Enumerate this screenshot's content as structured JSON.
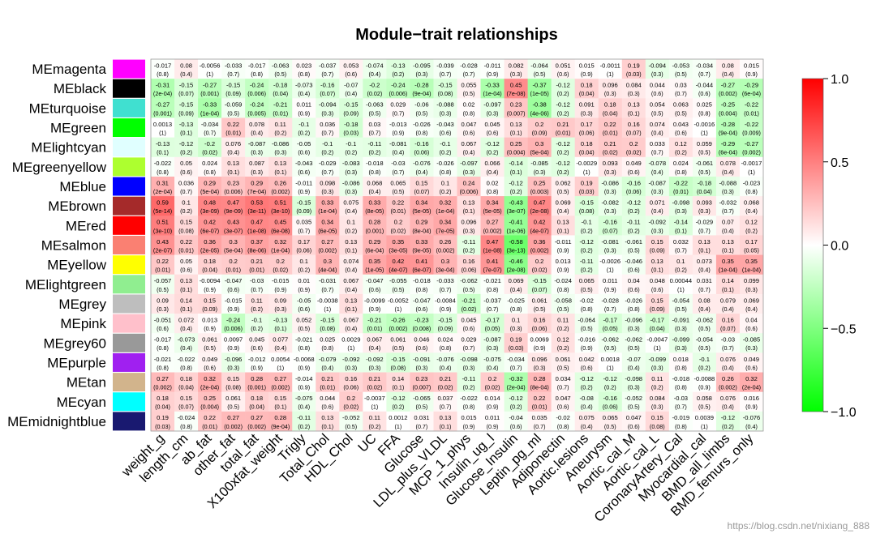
{
  "chart_data": {
    "type": "heatmap",
    "title": "Module−trait relationships",
    "rows": [
      "MEmagenta",
      "MEblack",
      "MEturquoise",
      "MEgreen",
      "MElightcyan",
      "MEgreenyellow",
      "MEblue",
      "MEbrown",
      "MEred",
      "MEsalmon",
      "MEyellow",
      "MElightgreen",
      "MEgrey",
      "MEpink",
      "MEgrey60",
      "MEpurple",
      "MEtan",
      "MEcyan",
      "MEmidnightblue"
    ],
    "row_colors": [
      "#ff00ff",
      "#000000",
      "#40e0d0",
      "#00ff00",
      "#e0ffff",
      "#adff2f",
      "#0000ff",
      "#a52a2a",
      "#ff0000",
      "#fa8072",
      "#ffff00",
      "#90ee90",
      "#bebebe",
      "#ffc0cb",
      "#999999",
      "#a020f0",
      "#d2b48c",
      "#00ffff",
      "#191970"
    ],
    "columns": [
      "weight_g",
      "length_cm",
      "ab_fat",
      "other_fat",
      "total_fat",
      "X100xfat_weight",
      "Trigly",
      "Total_Chol",
      "HDL_Chol",
      "UC",
      "FFA",
      "Glucose",
      "LDL_plus_VLDL",
      "MCP_1_phys",
      "Insulin_ug_l",
      "Glucose_Insulin",
      "Leptin_pg_ml",
      "Adiponectin",
      "Aortic.lesions",
      "Aneurysm",
      "Aortic_cal_M",
      "Aortic_cal_L",
      "CoronaryArtery_Cal",
      "Myocardial_cal",
      "BMD_all_limbs",
      "BMD_femurs_only"
    ],
    "values": [
      [
        "-0.017",
        "0.08",
        "-0.0056",
        "-0.033",
        "-0.017",
        "-0.063",
        "0.023",
        "-0.037",
        "0.053",
        "-0.074",
        "-0.13",
        "-0.095",
        "-0.039",
        "-0.028",
        "-0.011",
        "0.082",
        "-0.064",
        "0.051",
        "0.015",
        "-0.0011",
        "0.19",
        "-0.094",
        "-0.053",
        "-0.034",
        "0.08",
        "0.015"
      ],
      [
        "-0.31",
        "-0.15",
        "-0.27",
        "-0.15",
        "-0.24",
        "-0.18",
        "-0.073",
        "-0.16",
        "-0.07",
        "-0.2",
        "-0.24",
        "-0.28",
        "-0.15",
        "0.055",
        "-0.33",
        "0.45",
        "-0.37",
        "-0.12",
        "0.18",
        "0.096",
        "0.084",
        "0.044",
        "0.03",
        "-0.044",
        "-0.27",
        "-0.29"
      ],
      [
        "-0.27",
        "-0.15",
        "-0.33",
        "-0.059",
        "-0.24",
        "-0.21",
        "0.011",
        "-0.094",
        "-0.15",
        "-0.063",
        "0.029",
        "-0.06",
        "-0.088",
        "0.02",
        "-0.097",
        "0.23",
        "-0.38",
        "-0.12",
        "0.091",
        "0.18",
        "0.13",
        "0.054",
        "0.063",
        "0.025",
        "-0.25",
        "-0.22"
      ],
      [
        "0.0013",
        "-0.13",
        "-0.034",
        "0.22",
        "0.078",
        "0.11",
        "-0.1",
        "0.036",
        "-0.18",
        "0.03",
        "-0.013",
        "-0.026",
        "-0.043",
        "0.047",
        "0.045",
        "0.13",
        "0.2",
        "0.21",
        "0.17",
        "0.22",
        "0.16",
        "0.074",
        "0.043",
        "-0.0016",
        "-0.28",
        "-0.22"
      ],
      [
        "-0.13",
        "-0.12",
        "-0.2",
        "0.076",
        "-0.087",
        "-0.086",
        "-0.05",
        "-0.1",
        "-0.1",
        "-0.11",
        "-0.081",
        "-0.16",
        "-0.1",
        "0.067",
        "-0.12",
        "0.25",
        "0.3",
        "-0.12",
        "0.18",
        "0.21",
        "0.2",
        "0.033",
        "0.12",
        "0.059",
        "-0.29",
        "-0.27"
      ],
      [
        "-0.022",
        "0.05",
        "0.024",
        "0.13",
        "0.087",
        "0.13",
        "-0.043",
        "-0.029",
        "-0.083",
        "-0.018",
        "-0.03",
        "-0.076",
        "-0.026",
        "-0.097",
        "0.066",
        "-0.14",
        "-0.085",
        "-0.12",
        "-0.0029",
        "0.093",
        "0.049",
        "-0.078",
        "0.024",
        "-0.061",
        "0.078",
        "-0.0017"
      ],
      [
        "0.31",
        "0.036",
        "0.29",
        "0.23",
        "0.29",
        "0.26",
        "-0.011",
        "0.098",
        "-0.086",
        "0.068",
        "0.065",
        "0.15",
        "0.1",
        "0.24",
        "0.02",
        "-0.12",
        "0.25",
        "0.062",
        "0.19",
        "-0.086",
        "-0.16",
        "-0.087",
        "-0.22",
        "-0.18",
        "-0.088",
        "-0.023"
      ],
      [
        "0.59",
        "0.1",
        "0.48",
        "0.47",
        "0.53",
        "0.51",
        "-0.15",
        "0.33",
        "0.075",
        "0.33",
        "0.22",
        "0.34",
        "0.32",
        "0.13",
        "0.34",
        "-0.43",
        "0.47",
        "0.069",
        "-0.15",
        "-0.082",
        "-0.12",
        "0.071",
        "-0.098",
        "0.093",
        "-0.032",
        "0.068"
      ],
      [
        "0.51",
        "0.15",
        "0.42",
        "0.43",
        "0.47",
        "0.45",
        "0.035",
        "0.34",
        "0.1",
        "0.28",
        "0.2",
        "0.29",
        "0.34",
        "0.096",
        "0.27",
        "-0.41",
        "0.42",
        "0.13",
        "-0.1",
        "-0.16",
        "-0.11",
        "-0.092",
        "-0.14",
        "-0.029",
        "0.07",
        "0.12"
      ],
      [
        "0.43",
        "0.22",
        "0.36",
        "0.3",
        "0.37",
        "0.32",
        "0.17",
        "0.27",
        "0.13",
        "0.29",
        "0.35",
        "0.33",
        "0.26",
        "-0.11",
        "0.47",
        "-0.58",
        "0.36",
        "-0.011",
        "-0.12",
        "-0.081",
        "-0.061",
        "0.15",
        "0.032",
        "0.13",
        "0.13",
        "0.17"
      ],
      [
        "0.22",
        "0.05",
        "0.18",
        "0.2",
        "0.21",
        "0.2",
        "0.1",
        "0.3",
        "0.074",
        "0.35",
        "0.42",
        "0.41",
        "0.3",
        "0.16",
        "0.41",
        "-0.46",
        "0.2",
        "0.013",
        "-0.11",
        "-0.0026",
        "-0.046",
        "0.13",
        "0.1",
        "0.073",
        "0.35",
        "0.35"
      ],
      [
        "-0.057",
        "0.13",
        "-0.0094",
        "-0.047",
        "-0.03",
        "-0.015",
        "0.01",
        "-0.031",
        "0.067",
        "-0.047",
        "-0.055",
        "-0.018",
        "-0.033",
        "-0.062",
        "-0.021",
        "0.069",
        "-0.15",
        "-0.024",
        "0.065",
        "0.011",
        "0.04",
        "0.048",
        "0.00044",
        "0.031",
        "0.14",
        "0.099"
      ],
      [
        "0.09",
        "0.14",
        "0.15",
        "-0.015",
        "0.11",
        "0.09",
        "-0.05",
        "-0.0038",
        "0.13",
        "-0.0099",
        "-0.0052",
        "-0.047",
        "-0.0084",
        "-0.21",
        "-0.037",
        "-0.025",
        "0.061",
        "-0.058",
        "-0.02",
        "-0.028",
        "-0.026",
        "0.15",
        "-0.054",
        "0.08",
        "0.079",
        "0.069"
      ],
      [
        "-0.051",
        "0.072",
        "0.013",
        "-0.24",
        "-0.1",
        "-0.13",
        "0.052",
        "-0.15",
        "0.067",
        "-0.21",
        "-0.26",
        "-0.23",
        "-0.15",
        "0.045",
        "-0.17",
        "0.1",
        "0.16",
        "0.11",
        "-0.064",
        "-0.17",
        "-0.096",
        "-0.17",
        "-0.091",
        "-0.062",
        "0.16",
        "0.04"
      ],
      [
        "-0.017",
        "-0.073",
        "0.061",
        "0.0097",
        "0.045",
        "0.077",
        "-0.021",
        "0.025",
        "0.0029",
        "0.067",
        "0.061",
        "0.046",
        "0.024",
        "0.029",
        "-0.087",
        "0.19",
        "0.0069",
        "0.12",
        "-0.016",
        "-0.062",
        "-0.062",
        "-0.0047",
        "-0.099",
        "-0.054",
        "-0.03",
        "-0.085"
      ],
      [
        "-0.021",
        "-0.022",
        "0.049",
        "-0.096",
        "-0.012",
        "0.0054",
        "-0.0068",
        "-0.079",
        "-0.092",
        "-0.092",
        "-0.15",
        "-0.091",
        "-0.076",
        "-0.098",
        "-0.075",
        "-0.034",
        "0.096",
        "0.061",
        "0.042",
        "0.0018",
        "-0.07",
        "-0.099",
        "0.018",
        "-0.1",
        "0.076",
        "0.049"
      ],
      [
        "0.27",
        "0.18",
        "0.32",
        "0.15",
        "0.28",
        "0.27",
        "-0.014",
        "0.21",
        "0.16",
        "0.21",
        "0.14",
        "0.23",
        "0.21",
        "-0.11",
        "0.2",
        "-0.32",
        "0.28",
        "0.034",
        "-0.12",
        "-0.12",
        "-0.098",
        "0.11",
        "-0.018",
        "-0.0088",
        "0.26",
        "0.32"
      ],
      [
        "0.18",
        "0.15",
        "0.25",
        "0.061",
        "0.18",
        "0.15",
        "-0.075",
        "0.044",
        "0.2",
        "-0.0037",
        "-0.12",
        "-0.065",
        "0.037",
        "-0.022",
        "0.014",
        "-0.12",
        "0.22",
        "0.047",
        "-0.08",
        "-0.16",
        "-0.052",
        "0.084",
        "-0.03",
        "0.058",
        "0.076",
        "0.016"
      ],
      [
        "0.19",
        "-0.024",
        "0.22",
        "0.27",
        "0.27",
        "0.28",
        "-0.11",
        "0.13",
        "-0.052",
        "0.11",
        "0.0012",
        "0.031",
        "0.13",
        "0.015",
        "0.011",
        "-0.04",
        "0.035",
        "-0.02",
        "0.075",
        "0.065",
        "0.047",
        "0.15",
        "-0.019",
        "0.0039",
        "-0.12",
        "-0.076"
      ]
    ],
    "pvalues": [
      [
        "(0.8)",
        "(0.4)",
        "(1)",
        "(0.7)",
        "(0.8)",
        "(0.5)",
        "(0.8)",
        "(0.7)",
        "(0.6)",
        "(0.4)",
        "(0.2)",
        "(0.3)",
        "(0.7)",
        "(0.7)",
        "(0.9)",
        "(0.3)",
        "(0.5)",
        "(0.6)",
        "(0.9)",
        "(1)",
        "(0.03)",
        "(0.3)",
        "(0.5)",
        "(0.7)",
        "(0.4)",
        "(0.9)"
      ],
      [
        "(2e-04)",
        "(0.07)",
        "(0.001)",
        "(0.09)",
        "(0.006)",
        "(0.04)",
        "(0.4)",
        "(0.07)",
        "(0.4)",
        "(0.02)",
        "(0.006)",
        "(9e-04)",
        "(0.08)",
        "(0.5)",
        "(1e-04)",
        "(7e-08)",
        "(1e-05)",
        "(0.2)",
        "(0.04)",
        "(0.3)",
        "(0.3)",
        "(0.6)",
        "(0.7)",
        "(0.6)",
        "(0.002)",
        "(6e-04)"
      ],
      [
        "(0.001)",
        "(0.09)",
        "(1e-04)",
        "(0.5)",
        "(0.005)",
        "(0.01)",
        "(0.9)",
        "(0.3)",
        "(0.09)",
        "(0.5)",
        "(0.7)",
        "(0.5)",
        "(0.3)",
        "(0.8)",
        "(0.3)",
        "(0.007)",
        "(4e-06)",
        "(0.2)",
        "(0.3)",
        "(0.04)",
        "(0.1)",
        "(0.5)",
        "(0.5)",
        "(0.8)",
        "(0.004)",
        "(0.01)"
      ],
      [
        "(1)",
        "(0.1)",
        "(0.7)",
        "(0.01)",
        "(0.4)",
        "(0.2)",
        "(0.2)",
        "(0.7)",
        "(0.03)",
        "(0.7)",
        "(0.9)",
        "(0.8)",
        "(0.6)",
        "(0.6)",
        "(0.6)",
        "(0.1)",
        "(0.09)",
        "(0.01)",
        "(0.06)",
        "(0.01)",
        "(0.07)",
        "(0.4)",
        "(0.6)",
        "(1)",
        "(9e-04)",
        "(0.009)"
      ],
      [
        "(0.1)",
        "(0.2)",
        "(0.02)",
        "(0.4)",
        "(0.3)",
        "(0.3)",
        "(0.6)",
        "(0.2)",
        "(0.2)",
        "(0.2)",
        "(0.4)",
        "(0.06)",
        "(0.2)",
        "(0.4)",
        "(0.2)",
        "(0.004)",
        "(5e-04)",
        "(0.2)",
        "(0.04)",
        "(0.02)",
        "(0.02)",
        "(0.7)",
        "(0.2)",
        "(0.5)",
        "(6e-04)",
        "(0.002)"
      ],
      [
        "(0.8)",
        "(0.6)",
        "(0.8)",
        "(0.1)",
        "(0.3)",
        "(0.1)",
        "(0.6)",
        "(0.7)",
        "(0.3)",
        "(0.8)",
        "(0.7)",
        "(0.4)",
        "(0.8)",
        "(0.3)",
        "(0.4)",
        "(0.1)",
        "(0.3)",
        "(0.2)",
        "(1)",
        "(0.3)",
        "(0.6)",
        "(0.4)",
        "(0.8)",
        "(0.5)",
        "(0.4)",
        "(1)"
      ],
      [
        "(2e-04)",
        "(0.7)",
        "(5e-04)",
        "(0.006)",
        "(7e-04)",
        "(0.002)",
        "(0.9)",
        "(0.3)",
        "(0.3)",
        "(0.4)",
        "(0.5)",
        "(0.07)",
        "(0.2)",
        "(0.006)",
        "(0.8)",
        "(0.2)",
        "(0.003)",
        "(0.5)",
        "(0.03)",
        "(0.3)",
        "(0.06)",
        "(0.3)",
        "(0.01)",
        "(0.04)",
        "(0.3)",
        "(0.8)"
      ],
      [
        "(5e-14)",
        "(0.2)",
        "(3e-09)",
        "(9e-09)",
        "(3e-11)",
        "(3e-10)",
        "(0.09)",
        "(1e-04)",
        "(0.4)",
        "(8e-05)",
        "(0.01)",
        "(5e-05)",
        "(1e-04)",
        "(0.1)",
        "(5e-05)",
        "(3e-07)",
        "(2e-08)",
        "(0.4)",
        "(0.08)",
        "(0.3)",
        "(0.2)",
        "(0.4)",
        "(0.3)",
        "(0.3)",
        "(0.7)",
        "(0.4)"
      ],
      [
        "(3e-10)",
        "(0.08)",
        "(6e-07)",
        "(3e-07)",
        "(1e-08)",
        "(6e-08)",
        "(0.7)",
        "(6e-05)",
        "(0.2)",
        "(0.001)",
        "(0.02)",
        "(8e-04)",
        "(7e-05)",
        "(0.3)",
        "(0.002)",
        "(1e-06)",
        "(4e-07)",
        "(0.1)",
        "(0.2)",
        "(0.07)",
        "(0.2)",
        "(0.3)",
        "(0.1)",
        "(0.7)",
        "(0.4)",
        "(0.2)"
      ],
      [
        "(2e-07)",
        "(0.01)",
        "(2e-05)",
        "(5e-04)",
        "(8e-06)",
        "(1e-04)",
        "(0.06)",
        "(0.002)",
        "(0.1)",
        "(6e-04)",
        "(3e-05)",
        "(9e-05)",
        "(0.002)",
        "(0.2)",
        "(1e-08)",
        "(3e-13)",
        "(0.002)",
        "(0.9)",
        "(0.2)",
        "(0.3)",
        "(0.5)",
        "(0.09)",
        "(0.7)",
        "(0.1)",
        "(0.1)",
        "(0.05)"
      ],
      [
        "(0.01)",
        "(0.6)",
        "(0.04)",
        "(0.01)",
        "(0.01)",
        "(0.02)",
        "(0.2)",
        "(4e-04)",
        "(0.4)",
        "(1e-05)",
        "(4e-07)",
        "(6e-07)",
        "(3e-04)",
        "(0.06)",
        "(7e-07)",
        "(2e-08)",
        "(0.02)",
        "(0.9)",
        "(0.2)",
        "(1)",
        "(0.6)",
        "(0.1)",
        "(0.2)",
        "(0.4)",
        "(1e-04)",
        "(1e-04)"
      ],
      [
        "(0.5)",
        "(0.1)",
        "(0.9)",
        "(0.6)",
        "(0.7)",
        "(0.9)",
        "(0.9)",
        "(0.7)",
        "(0.4)",
        "(0.6)",
        "(0.5)",
        "(0.8)",
        "(0.7)",
        "(0.5)",
        "(0.8)",
        "(0.4)",
        "(0.07)",
        "(0.8)",
        "(0.5)",
        "(0.9)",
        "(0.6)",
        "(0.6)",
        "(1)",
        "(0.7)",
        "(0.1)",
        "(0.3)"
      ],
      [
        "(0.3)",
        "(0.1)",
        "(0.09)",
        "(0.9)",
        "(0.2)",
        "(0.3)",
        "(0.6)",
        "(1)",
        "(0.1)",
        "(0.9)",
        "(1)",
        "(0.6)",
        "(0.9)",
        "(0.02)",
        "(0.7)",
        "(0.8)",
        "(0.5)",
        "(0.5)",
        "(0.8)",
        "(0.7)",
        "(0.8)",
        "(0.09)",
        "(0.5)",
        "(0.4)",
        "(0.4)",
        "(0.4)"
      ],
      [
        "(0.6)",
        "(0.4)",
        "(0.9)",
        "(0.006)",
        "(0.2)",
        "(0.1)",
        "(0.5)",
        "(0.08)",
        "(0.4)",
        "(0.01)",
        "(0.002)",
        "(0.008)",
        "(0.09)",
        "(0.6)",
        "(0.05)",
        "(0.3)",
        "(0.06)",
        "(0.2)",
        "(0.5)",
        "(0.05)",
        "(0.3)",
        "(0.04)",
        "(0.3)",
        "(0.5)",
        "(0.07)",
        "(0.6)"
      ],
      [
        "(0.8)",
        "(0.4)",
        "(0.5)",
        "(0.9)",
        "(0.6)",
        "(0.4)",
        "(0.8)",
        "(0.8)",
        "(1)",
        "(0.4)",
        "(0.5)",
        "(0.6)",
        "(0.8)",
        "(0.7)",
        "(0.3)",
        "(0.03)",
        "(0.9)",
        "(0.2)",
        "(0.9)",
        "(0.5)",
        "(0.5)",
        "(1)",
        "(0.3)",
        "(0.5)",
        "(0.7)",
        "(0.3)"
      ],
      [
        "(0.8)",
        "(0.8)",
        "(0.6)",
        "(0.3)",
        "(0.9)",
        "(1)",
        "(0.9)",
        "(0.4)",
        "(0.3)",
        "(0.3)",
        "(0.08)",
        "(0.3)",
        "(0.4)",
        "(0.3)",
        "(0.4)",
        "(0.7)",
        "(0.3)",
        "(0.5)",
        "(0.6)",
        "(1)",
        "(0.4)",
        "(0.3)",
        "(0.8)",
        "(0.2)",
        "(0.4)",
        "(0.6)"
      ],
      [
        "(0.002)",
        "(0.04)",
        "(2e-04)",
        "(0.08)",
        "(0.001)",
        "(0.002)",
        "(0.9)",
        "(0.01)",
        "(0.06)",
        "(0.02)",
        "(0.1)",
        "(0.007)",
        "(0.02)",
        "(0.2)",
        "(0.02)",
        "(2e-04)",
        "(8e-04)",
        "(0.7)",
        "(0.2)",
        "(0.2)",
        "(0.3)",
        "(0.2)",
        "(0.8)",
        "(0.9)",
        "(0.002)",
        "(2e-04)"
      ],
      [
        "(0.04)",
        "(0.07)",
        "(0.004)",
        "(0.5)",
        "(0.04)",
        "(0.1)",
        "(0.4)",
        "(0.6)",
        "(0.02)",
        "(1)",
        "(0.2)",
        "(0.5)",
        "(0.7)",
        "(0.8)",
        "(0.9)",
        "(0.2)",
        "(0.01)",
        "(0.6)",
        "(0.4)",
        "(0.06)",
        "(0.5)",
        "(0.3)",
        "(0.7)",
        "(0.5)",
        "(0.4)",
        "(0.9)"
      ],
      [
        "(0.03)",
        "(0.8)",
        "(0.01)",
        "(0.002)",
        "(0.002)",
        "(9e-04)",
        "(0.2)",
        "(0.1)",
        "(0.5)",
        "(0.2)",
        "(1)",
        "(0.7)",
        "(0.1)",
        "(0.9)",
        "(0.9)",
        "(0.6)",
        "(0.7)",
        "(0.8)",
        "(0.4)",
        "(0.5)",
        "(0.6)",
        "(0.08)",
        "(0.8)",
        "(1)",
        "(0.2)",
        "(0.4)"
      ]
    ],
    "colorbar": {
      "range": [
        -1.0,
        1.0
      ],
      "ticks": [
        "1.0",
        "0.5",
        "0.0",
        "−0.5",
        "−1.0"
      ],
      "tick_values": [
        1.0,
        0.5,
        0.0,
        -0.5,
        -1.0
      ],
      "low_color": "#00ff00",
      "mid_color": "#ffffff",
      "high_color": "#ff0000"
    },
    "xlabel": "",
    "ylabel": ""
  },
  "watermark": "https://blog.csdn.net/nixiang_888"
}
